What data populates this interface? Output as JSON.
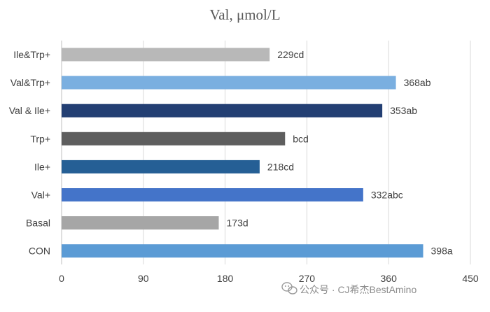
{
  "chart_data": {
    "type": "bar",
    "orientation": "horizontal",
    "title": "Val, μmol/L",
    "xlabel": "",
    "ylabel": "",
    "xlim": [
      0,
      450
    ],
    "x_ticks": [
      0,
      90,
      180,
      270,
      360,
      450
    ],
    "grid": "vertical",
    "categories": [
      "Ile&Trp+",
      "Val&Trp+",
      "Val & Ile+",
      "Trp+",
      "Ile+",
      "Val+",
      "Basal",
      "CON"
    ],
    "values": [
      229,
      368,
      353,
      246,
      218,
      332,
      173,
      398
    ],
    "data_labels": [
      "229cd",
      "368ab",
      "353ab",
      "bcd",
      "218cd",
      "332abc",
      "173d",
      "398a"
    ],
    "bar_colors": [
      "#b8b8b8",
      "#7aafe0",
      "#233f73",
      "#5e5e5e",
      "#255f95",
      "#4474c9",
      "#a6a6a6",
      "#5b9bd5"
    ]
  },
  "watermark": {
    "icon": "wechat-icon",
    "text": "公众号 · CJ希杰BestAmino"
  }
}
